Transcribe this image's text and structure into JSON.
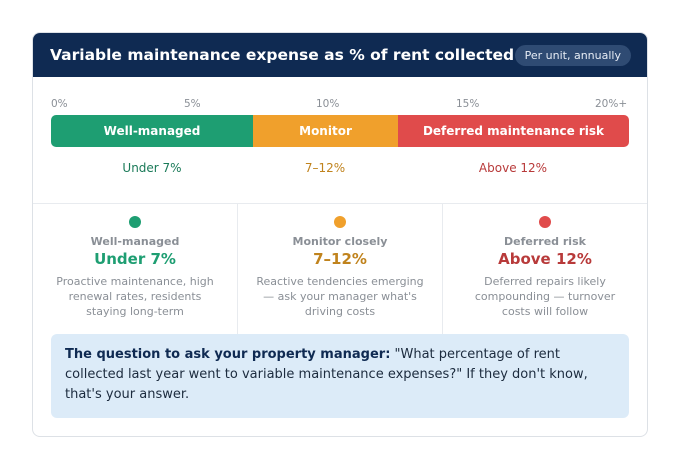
{
  "header": {
    "title": "Variable maintenance expense as % of rent collected",
    "badge": "Per unit, annually"
  },
  "scale": {
    "ticks": [
      "0%",
      "5%",
      "10%",
      "15%",
      "20%+"
    ],
    "segments": [
      {
        "label": "Well-managed",
        "range": "Under 7%",
        "color": "#1e9e72"
      },
      {
        "label": "Monitor",
        "range": "7–12%",
        "color": "#f0a02c"
      },
      {
        "label": "Deferred maintenance risk",
        "range": "Above 12%",
        "color": "#e04b4b"
      }
    ]
  },
  "columns": [
    {
      "title": "Well-managed",
      "value": "Under 7%",
      "desc": "Proactive maintenance, high renewal rates, residents staying long-term",
      "color": "#1e9e72"
    },
    {
      "title": "Monitor closely",
      "value": "7–12%",
      "desc": "Reactive tendencies emerging — ask your manager what's driving costs",
      "color": "#f0a02c"
    },
    {
      "title": "Deferred risk",
      "value": "Above 12%",
      "desc": "Deferred repairs likely compounding — turnover costs will follow",
      "color": "#e04b4b"
    }
  ],
  "callout": {
    "lead": "The question to ask your property manager:",
    "text": " \"What percentage of rent collected last year went to variable maintenance expenses?\" If they don't know, that's your answer."
  }
}
